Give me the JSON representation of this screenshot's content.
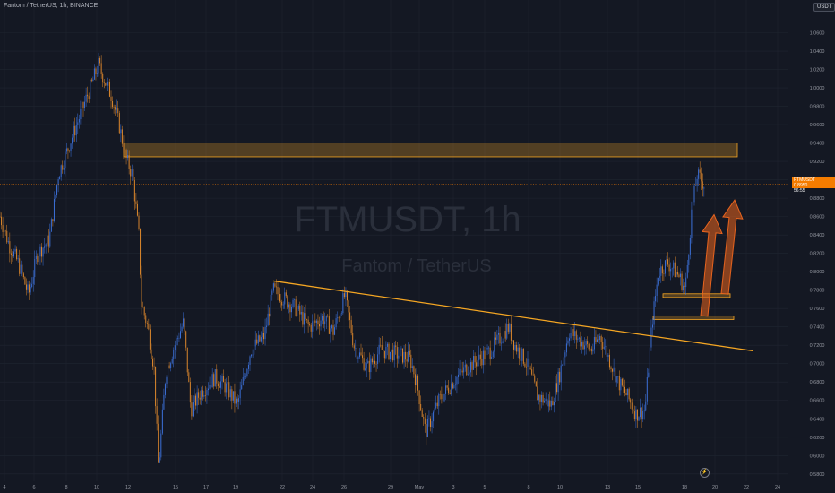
{
  "header": {
    "symbol_line": "Fantom / TetherUS, 1h, BINANCE",
    "currency_badge": "USDT"
  },
  "watermark": {
    "ticker": "FTMUSDT, 1h",
    "name": "Fantom / TetherUS"
  },
  "price_label": {
    "symbol": "FTMUSDT",
    "price": "0.8950",
    "countdown": "56:55",
    "color": "#f57c00"
  },
  "colors": {
    "background": "#141823",
    "bull": "#3b6fd6",
    "bear": "#d9852c",
    "trendline": "#f5a623",
    "zone": "#f5a623",
    "arrow": "#e8641e"
  },
  "chart_data": {
    "type": "candlestick",
    "y_axis": {
      "ticks": [
        "1.0600",
        "1.0400",
        "1.0200",
        "1.0000",
        "0.9800",
        "0.9600",
        "0.9400",
        "0.9200",
        "0.9000",
        "0.8800",
        "0.8600",
        "0.8400",
        "0.8200",
        "0.8000",
        "0.7800",
        "0.7600",
        "0.7400",
        "0.7200",
        "0.7000",
        "0.6800",
        "0.6600",
        "0.6400",
        "0.6200",
        "0.6000",
        "0.5800"
      ],
      "range": [
        0.572,
        1.08
      ]
    },
    "x_axis": {
      "ticks": [
        "4",
        "6",
        "8",
        "10",
        "12",
        "15",
        "17",
        "19",
        "22",
        "24",
        "26",
        "29",
        "May",
        "3",
        "5",
        "8",
        "10",
        "13",
        "15",
        "18",
        "20",
        "22",
        "24"
      ]
    },
    "price_path": [
      [
        0,
        0.86
      ],
      [
        10,
        0.83
      ],
      [
        20,
        0.81
      ],
      [
        32,
        0.775
      ],
      [
        42,
        0.82
      ],
      [
        55,
        0.835
      ],
      [
        65,
        0.905
      ],
      [
        78,
        0.94
      ],
      [
        95,
        0.985
      ],
      [
        110,
        1.025
      ],
      [
        118,
        1.005
      ],
      [
        125,
        0.99
      ],
      [
        133,
        0.96
      ],
      [
        140,
        0.925
      ],
      [
        148,
        0.905
      ],
      [
        155,
        0.84
      ],
      [
        158,
        0.765
      ],
      [
        165,
        0.74
      ],
      [
        172,
        0.695
      ],
      [
        177,
        0.585
      ],
      [
        185,
        0.69
      ],
      [
        195,
        0.72
      ],
      [
        205,
        0.745
      ],
      [
        213,
        0.65
      ],
      [
        225,
        0.67
      ],
      [
        240,
        0.685
      ],
      [
        252,
        0.675
      ],
      [
        265,
        0.655
      ],
      [
        280,
        0.715
      ],
      [
        295,
        0.73
      ],
      [
        305,
        0.78
      ],
      [
        318,
        0.77
      ],
      [
        330,
        0.76
      ],
      [
        345,
        0.74
      ],
      [
        360,
        0.75
      ],
      [
        372,
        0.735
      ],
      [
        385,
        0.775
      ],
      [
        395,
        0.72
      ],
      [
        410,
        0.695
      ],
      [
        425,
        0.715
      ],
      [
        445,
        0.71
      ],
      [
        458,
        0.705
      ],
      [
        465,
        0.68
      ],
      [
        475,
        0.625
      ],
      [
        490,
        0.66
      ],
      [
        505,
        0.68
      ],
      [
        520,
        0.695
      ],
      [
        535,
        0.705
      ],
      [
        548,
        0.715
      ],
      [
        560,
        0.73
      ],
      [
        567,
        0.74
      ],
      [
        575,
        0.72
      ],
      [
        588,
        0.7
      ],
      [
        600,
        0.665
      ],
      [
        615,
        0.655
      ],
      [
        625,
        0.69
      ],
      [
        635,
        0.735
      ],
      [
        648,
        0.725
      ],
      [
        660,
        0.715
      ],
      [
        670,
        0.73
      ],
      [
        680,
        0.705
      ],
      [
        690,
        0.68
      ],
      [
        700,
        0.665
      ],
      [
        710,
        0.645
      ],
      [
        720,
        0.65
      ],
      [
        728,
        0.745
      ],
      [
        735,
        0.8
      ],
      [
        745,
        0.81
      ],
      [
        758,
        0.795
      ],
      [
        765,
        0.78
      ],
      [
        772,
        0.865
      ],
      [
        778,
        0.905
      ],
      [
        786,
        0.895
      ]
    ],
    "zones": [
      {
        "name": "resistance-zone",
        "price_top": 0.94,
        "price_bottom": 0.925,
        "x_start": 138,
        "x_end": 823
      },
      {
        "name": "support-zone-1",
        "price_top": 0.776,
        "price_bottom": 0.772,
        "x_start": 740,
        "x_end": 815
      },
      {
        "name": "support-zone-2",
        "price_top": 0.752,
        "price_bottom": 0.748,
        "x_start": 729,
        "x_end": 819
      }
    ],
    "trendline": {
      "from": [
        305,
        0.79
      ],
      "to": [
        840,
        0.714
      ]
    },
    "arrows": [
      {
        "from": [
          786,
          0.752
        ],
        "to": [
          797,
          0.862
        ]
      },
      {
        "from": [
          809,
          0.776
        ],
        "to": [
          820,
          0.878
        ]
      }
    ]
  }
}
